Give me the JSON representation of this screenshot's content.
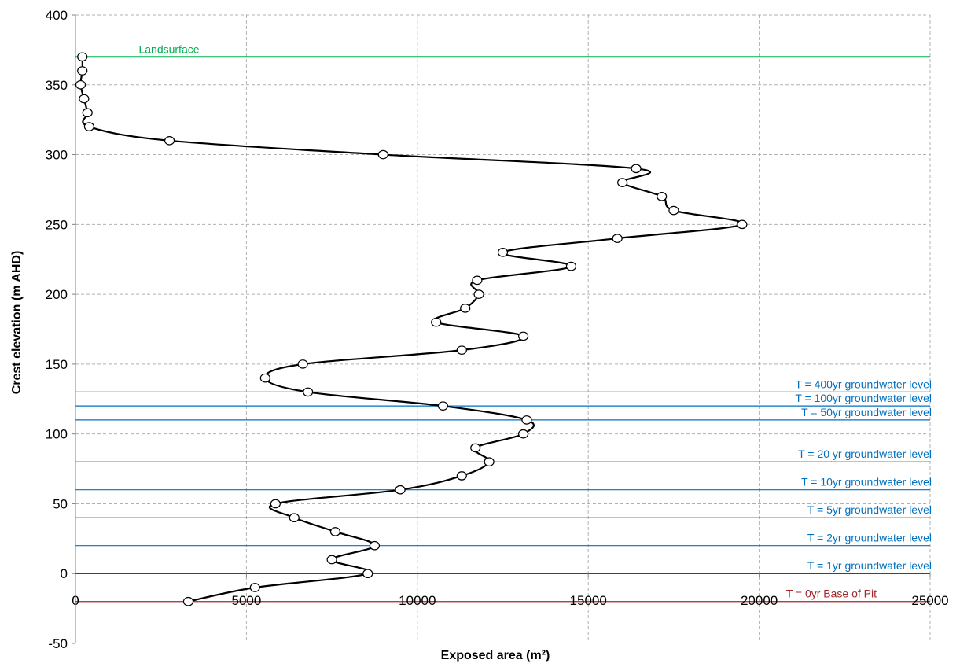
{
  "chart_data": {
    "type": "line",
    "title": "",
    "xlabel": "Exposed area (m²)",
    "ylabel": "Crest elevation (m AHD)",
    "xlim": [
      0,
      25000
    ],
    "ylim": [
      -50,
      400
    ],
    "x_ticks": [
      0,
      5000,
      10000,
      15000,
      20000,
      25000
    ],
    "y_ticks": [
      -50,
      0,
      50,
      100,
      150,
      200,
      250,
      300,
      350,
      400
    ],
    "grid": true,
    "legend": "none",
    "series": [
      {
        "color": "#000000",
        "marker": "open-circle",
        "x": [
          3300,
          5250,
          8550,
          7500,
          8750,
          7600,
          6400,
          5850,
          9500,
          11300,
          12100,
          11700,
          13100,
          13200,
          10750,
          6800,
          5550,
          6650,
          11300,
          13100,
          10550,
          11400,
          11800,
          11750,
          14500,
          12500,
          15850,
          19500,
          17500,
          17150,
          16000,
          16400,
          9000,
          2750,
          400,
          350,
          250,
          150,
          200,
          200
        ],
        "y": [
          -20,
          -10,
          0,
          10,
          20,
          30,
          40,
          50,
          60,
          70,
          80,
          90,
          100,
          110,
          120,
          130,
          140,
          150,
          160,
          170,
          180,
          190,
          200,
          210,
          220,
          230,
          240,
          250,
          260,
          270,
          280,
          290,
          300,
          310,
          320,
          330,
          340,
          350,
          360,
          370
        ]
      }
    ],
    "reference_lines": [
      {
        "y": 370,
        "label": "Landsurface",
        "color": "#00b050"
      },
      {
        "y": 130,
        "label": "T = 400yr groundwater level",
        "color": "#0070c0"
      },
      {
        "y": 120,
        "label": "T = 100yr groundwater level",
        "color": "#0070c0"
      },
      {
        "y": 110,
        "label": "T = 50yr groundwater level",
        "color": "#0070c0"
      },
      {
        "y": 80,
        "label": "T = 20 yr groundwater level",
        "color": "#0070c0"
      },
      {
        "y": 60,
        "label": "T = 10yr groundwater level",
        "color": "#0070c0"
      },
      {
        "y": 40,
        "label": "T = 5yr groundwater level",
        "color": "#0070c0"
      },
      {
        "y": 20,
        "label": "T = 2yr groundwater level",
        "color": "#0070c0"
      },
      {
        "y": 0,
        "label": "T = 1yr groundwater level",
        "color": "#0070c0"
      },
      {
        "y": -20,
        "label": "T = 0yr Base of Pit",
        "color": "#a0282c"
      }
    ]
  }
}
